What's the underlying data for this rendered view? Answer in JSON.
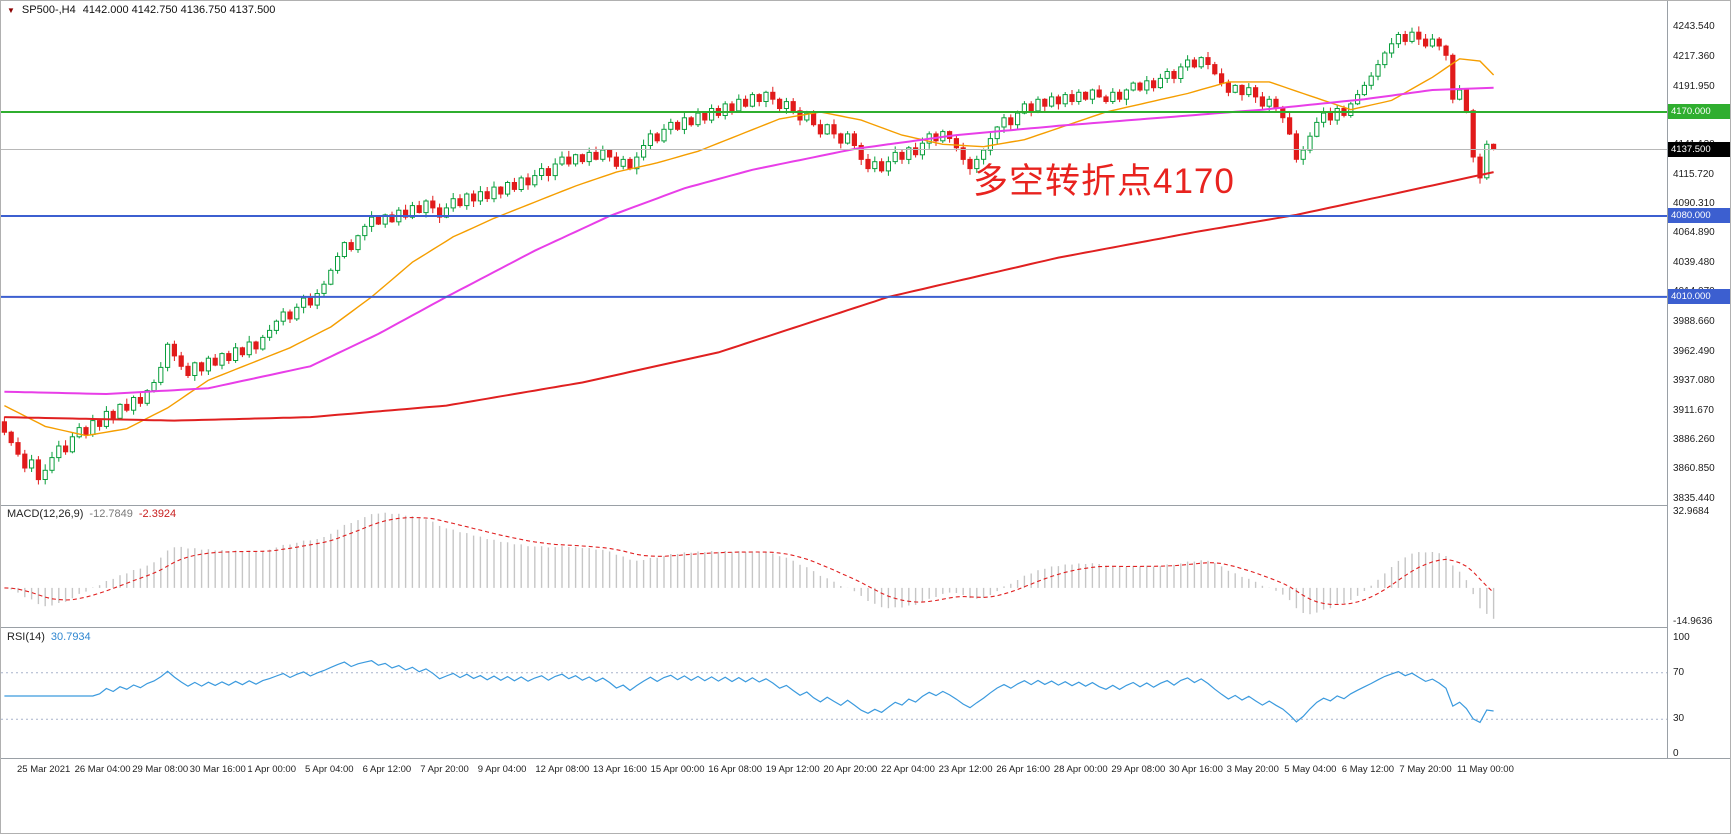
{
  "symbol_header": {
    "dropdown_icon": "▼",
    "title": "SP500-,H4",
    "ohlc": "4142.000 4142.750 4136.750 4137.500"
  },
  "annotation": {
    "text": "多空转折点4170",
    "color": "#e8231f"
  },
  "colors": {
    "background": "#ffffff",
    "candle_up": "#0a9e3c",
    "candle_down": "#e11b1b",
    "axis_text": "#1d1d1d"
  },
  "hlines": [
    {
      "price": 4170.0,
      "color": "#2fae2f",
      "width": 2
    },
    {
      "price": 4137.5,
      "color": "#b8b8b8",
      "width": 1
    },
    {
      "price": 4080.0,
      "color": "#3c5fd0",
      "width": 2
    },
    {
      "price": 4010.0,
      "color": "#3c5fd0",
      "width": 2
    }
  ],
  "price_axis": {
    "labels": [
      "4243.540",
      "4217.360",
      "4191.950",
      "4166.540",
      "4141.130",
      "4115.720",
      "4090.310",
      "4064.890",
      "4039.480",
      "4014.070",
      "3988.660",
      "3962.490",
      "3937.080",
      "3911.670",
      "3886.260",
      "3860.850",
      "3835.440"
    ],
    "tags": [
      {
        "text": "4170.000",
        "price": 4170.0,
        "bg": "#2fae2f"
      },
      {
        "text": "4137.500",
        "price": 4137.5,
        "bg": "#000000"
      },
      {
        "text": "4080.000",
        "price": 4080.0,
        "bg": "#3c5fd0"
      },
      {
        "text": "4010.000",
        "price": 4010.0,
        "bg": "#3c5fd0"
      }
    ]
  },
  "chart_data": {
    "type": "candlestick",
    "symbol": "SP500-",
    "timeframe": "H4",
    "price_range": {
      "min": 3830,
      "max": 4266
    },
    "x_labels": [
      "25 Mar 2021",
      "26 Mar 04:00",
      "29 Mar 08:00",
      "30 Mar 16:00",
      "1 Apr 00:00",
      "5 Apr 04:00",
      "6 Apr 12:00",
      "7 Apr 20:00",
      "9 Apr 04:00",
      "12 Apr 08:00",
      "13 Apr 16:00",
      "15 Apr 00:00",
      "16 Apr 08:00",
      "19 Apr 12:00",
      "20 Apr 20:00",
      "22 Apr 04:00",
      "23 Apr 12:00",
      "26 Apr 16:00",
      "28 Apr 00:00",
      "29 Apr 08:00",
      "30 Apr 16:00",
      "3 May 20:00",
      "5 May 04:00",
      "6 May 12:00",
      "7 May 20:00",
      "11 May 00:00"
    ],
    "closes": [
      3893,
      3884,
      3874,
      3862,
      3869,
      3852,
      3860,
      3871,
      3881,
      3876,
      3889,
      3897,
      3891,
      3903,
      3898,
      3911,
      3905,
      3917,
      3912,
      3923,
      3918,
      3929,
      3936,
      3949,
      3969,
      3959,
      3950,
      3942,
      3953,
      3946,
      3957,
      3951,
      3961,
      3955,
      3966,
      3960,
      3971,
      3965,
      3975,
      3981,
      3989,
      3997,
      3991,
      4001,
      4009,
      4003,
      4013,
      4021,
      4033,
      4045,
      4057,
      4051,
      4063,
      4071,
      4079,
      4073,
      4081,
      4075,
      4085,
      4079,
      4089,
      4083,
      4093,
      4087,
      4079,
      4087,
      4095,
      4089,
      4099,
      4093,
      4101,
      4095,
      4105,
      4099,
      4109,
      4103,
      4113,
      4107,
      4115,
      4121,
      4115,
      4125,
      4131,
      4125,
      4133,
      4127,
      4135,
      4129,
      4137,
      4131,
      4123,
      4129,
      4121,
      4131,
      4141,
      4151,
      4145,
      4155,
      4161,
      4155,
      4165,
      4159,
      4169,
      4163,
      4173,
      4167,
      4177,
      4171,
      4181,
      4175,
      4185,
      4179,
      4187,
      4181,
      4173,
      4179,
      4171,
      4163,
      4169,
      4159,
      4151,
      4159,
      4151,
      4143,
      4151,
      4141,
      4129,
      4121,
      4127,
      4119,
      4127,
      4135,
      4129,
      4139,
      4133,
      4143,
      4151,
      4145,
      4153,
      4147,
      4139,
      4129,
      4121,
      4129,
      4137,
      4147,
      4157,
      4165,
      4159,
      4169,
      4177,
      4171,
      4181,
      4175,
      4183,
      4177,
      4185,
      4179,
      4187,
      4181,
      4189,
      4183,
      4179,
      4187,
      4181,
      4189,
      4195,
      4189,
      4197,
      4191,
      4199,
      4205,
      4199,
      4209,
      4215,
      4209,
      4217,
      4211,
      4203,
      4195,
      4187,
      4193,
      4185,
      4191,
      4183,
      4175,
      4181,
      4173,
      4165,
      4151,
      4129,
      4137,
      4149,
      4161,
      4169,
      4163,
      4173,
      4167,
      4177,
      4185,
      4193,
      4201,
      4211,
      4221,
      4229,
      4237,
      4231,
      4239,
      4233,
      4227,
      4233,
      4227,
      4219,
      4181,
      4189,
      4171,
      4131,
      4113,
      4142,
      4137.5
    ],
    "last_bar": {
      "open": 4142.0,
      "high": 4142.75,
      "low": 4136.75,
      "close": 4137.5
    },
    "ma_lines": [
      {
        "name": "fast-ma",
        "color": "#f59e00",
        "width": 1.4,
        "anchors": [
          [
            0,
            3916
          ],
          [
            6,
            3898
          ],
          [
            12,
            3890
          ],
          [
            18,
            3896
          ],
          [
            24,
            3914
          ],
          [
            30,
            3938
          ],
          [
            36,
            3952
          ],
          [
            42,
            3966
          ],
          [
            48,
            3984
          ],
          [
            54,
            4010
          ],
          [
            60,
            4040
          ],
          [
            66,
            4062
          ],
          [
            72,
            4078
          ],
          [
            78,
            4092
          ],
          [
            84,
            4106
          ],
          [
            90,
            4118
          ],
          [
            96,
            4126
          ],
          [
            102,
            4136
          ],
          [
            108,
            4150
          ],
          [
            114,
            4164
          ],
          [
            120,
            4170
          ],
          [
            126,
            4163
          ],
          [
            132,
            4150
          ],
          [
            138,
            4142
          ],
          [
            144,
            4140
          ],
          [
            150,
            4146
          ],
          [
            156,
            4158
          ],
          [
            162,
            4170
          ],
          [
            168,
            4178
          ],
          [
            174,
            4186
          ],
          [
            180,
            4196
          ],
          [
            186,
            4196
          ],
          [
            192,
            4184
          ],
          [
            198,
            4172
          ],
          [
            204,
            4180
          ],
          [
            210,
            4200
          ],
          [
            214,
            4216
          ],
          [
            217,
            4214
          ],
          [
            219,
            4202
          ]
        ]
      },
      {
        "name": "medium-ma",
        "color": "#e83ee8",
        "width": 2,
        "anchors": [
          [
            0,
            3928
          ],
          [
            15,
            3926
          ],
          [
            30,
            3931
          ],
          [
            45,
            3950
          ],
          [
            55,
            3978
          ],
          [
            65,
            4010
          ],
          [
            78,
            4050
          ],
          [
            89,
            4080
          ],
          [
            100,
            4104
          ],
          [
            110,
            4120
          ],
          [
            125,
            4138
          ],
          [
            140,
            4150
          ],
          [
            155,
            4158
          ],
          [
            170,
            4165
          ],
          [
            185,
            4172
          ],
          [
            200,
            4181
          ],
          [
            210,
            4189
          ],
          [
            219,
            4191
          ]
        ]
      },
      {
        "name": "slow-ma",
        "color": "#e02020",
        "width": 2,
        "anchors": [
          [
            0,
            3906
          ],
          [
            25,
            3903
          ],
          [
            45,
            3906
          ],
          [
            65,
            3916
          ],
          [
            85,
            3936
          ],
          [
            105,
            3962
          ],
          [
            130,
            4010
          ],
          [
            155,
            4044
          ],
          [
            175,
            4066
          ],
          [
            190,
            4081
          ],
          [
            205,
            4100
          ],
          [
            219,
            4118
          ]
        ]
      }
    ],
    "macd": {
      "label": "MACD(12,26,9)",
      "value": "-12.7849",
      "signal_value": "-2.3924",
      "fast": 12,
      "slow": 26,
      "signal": 9,
      "hist_color": "#c6c6c6",
      "signal_color": "#e02020",
      "axis": {
        "max": 36,
        "min": -17,
        "labels": [
          {
            "text": "32.9684",
            "value": 32.9684
          },
          {
            "text": "-14.9636",
            "value": -14.9636
          }
        ]
      }
    },
    "rsi": {
      "label": "RSI(14)",
      "value": "30.7934",
      "period": 14,
      "levels": [
        70,
        30
      ],
      "axis_labels": [
        "100",
        "70",
        "30",
        "0"
      ],
      "line_color": "#3b9ade"
    }
  }
}
